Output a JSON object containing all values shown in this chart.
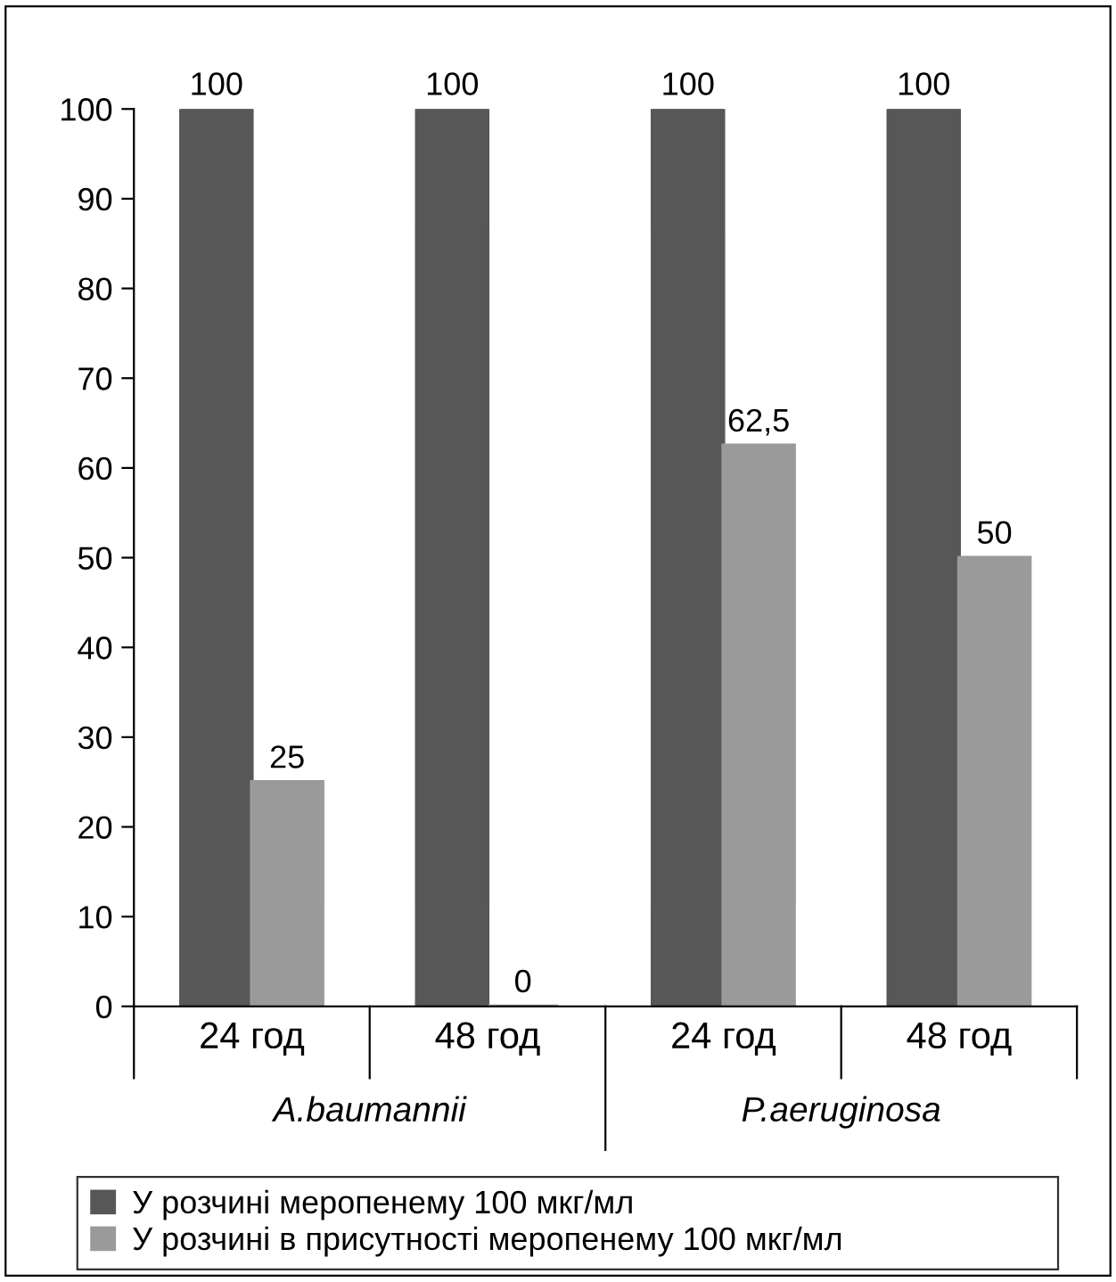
{
  "chart_data": {
    "type": "bar",
    "categories": [
      "24 год",
      "48 год",
      "24 год",
      "48 год"
    ],
    "series": [
      {
        "name": "У розчині меропенему 100 мкг/мл",
        "color": "#575757",
        "values": [
          100,
          100,
          100,
          100
        ],
        "value_labels": [
          "100",
          "100",
          "100",
          "100"
        ]
      },
      {
        "name": "У розчині в присутності меропенему 100 мкг/мл",
        "color": "#9a9a9a",
        "values": [
          25,
          0,
          62.5,
          50
        ],
        "value_labels": [
          "25",
          "0",
          "62,5",
          "50"
        ]
      }
    ],
    "annotations": [
      "A.baumannii",
      "P.aeruginosa"
    ],
    "ylim": [
      0,
      100
    ],
    "yticks": [
      0,
      10,
      20,
      30,
      40,
      50,
      60,
      70,
      80,
      90,
      100
    ],
    "grid": false,
    "legend": "bottom"
  }
}
